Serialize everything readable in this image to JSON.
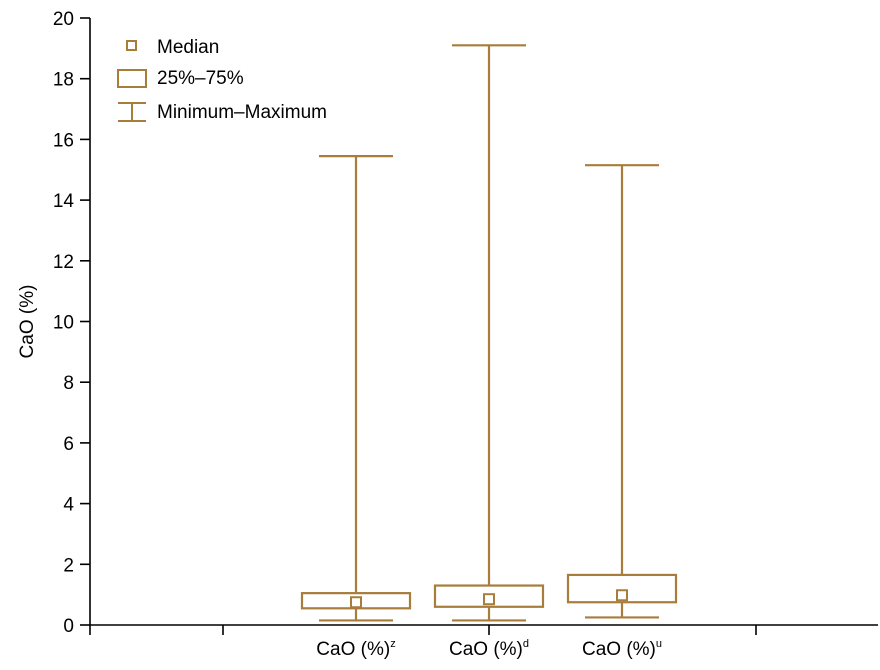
{
  "chart_data": {
    "type": "box",
    "ylabel": "CaO (%)",
    "ylim": [
      0,
      20
    ],
    "yticks": [
      0,
      2,
      4,
      6,
      8,
      10,
      12,
      14,
      16,
      18,
      20
    ],
    "grid": false,
    "legend_position": "top-left",
    "legend": {
      "median": "Median",
      "box": "25%–75%",
      "whisker": "Minimum–Maximum"
    },
    "color": "#a87d3c",
    "categories": [
      {
        "label": "CaO (%)",
        "superscript": "z",
        "min": 0.15,
        "q1": 0.55,
        "median": 0.75,
        "q3": 1.05,
        "max": 15.45
      },
      {
        "label": "CaO (%)",
        "superscript": "d",
        "min": 0.15,
        "q1": 0.6,
        "median": 0.85,
        "q3": 1.3,
        "max": 19.1
      },
      {
        "label": "CaO (%)",
        "superscript": "u",
        "min": 0.25,
        "q1": 0.75,
        "median": 0.98,
        "q3": 1.65,
        "max": 15.15
      }
    ]
  }
}
